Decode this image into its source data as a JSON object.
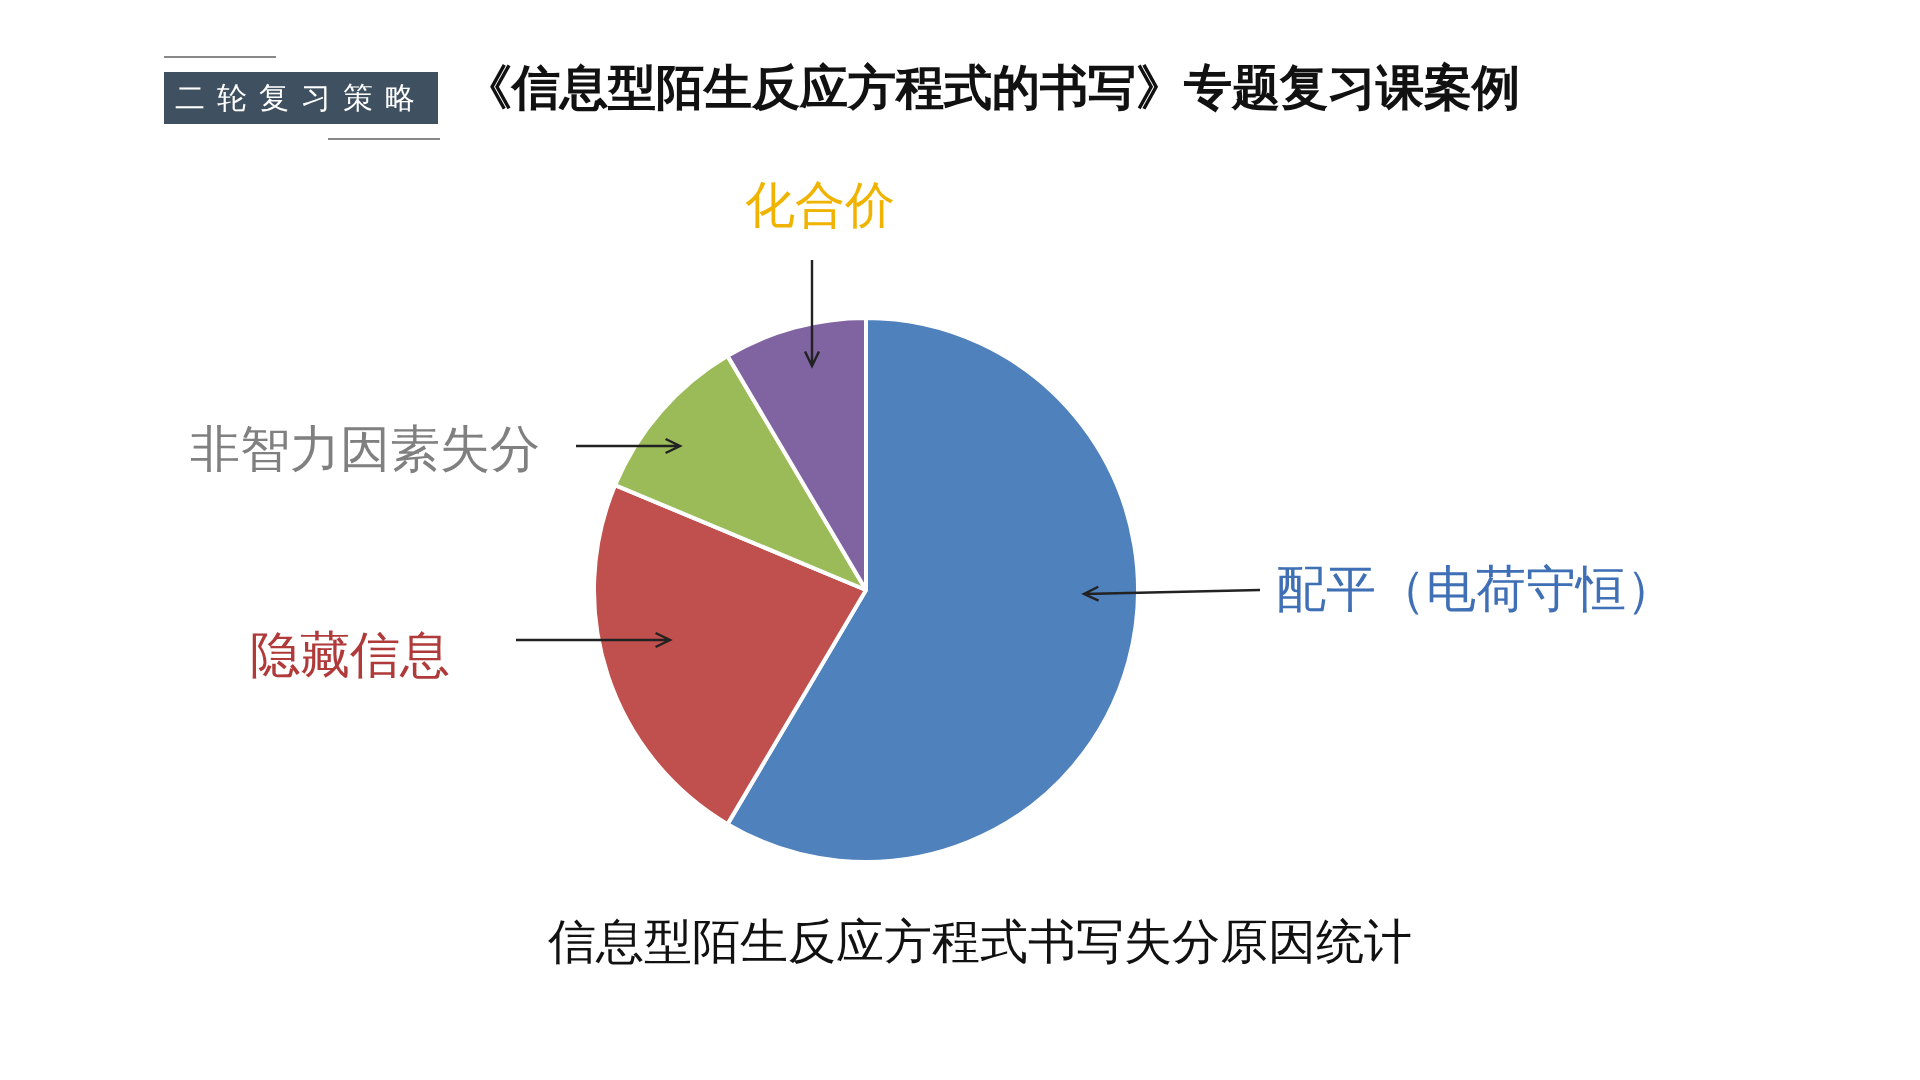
{
  "chart_data": {
    "type": "pie",
    "title": "《信息型陌生反应方程式的书写》专题复习课案例",
    "subtitle": "二轮复习策略",
    "categories": [
      "配平（电荷守恒）",
      "隐藏信息",
      "非智力因素失分",
      "化合价"
    ],
    "values": [
      58.5,
      22.8,
      10.2,
      8.5
    ],
    "colors": [
      "#4f81bd",
      "#c0504d",
      "#9bbb59",
      "#8064a2"
    ],
    "annotations": [
      "信息型陌生反应方程式书写失分原因统计"
    ],
    "legend": false
  }
}
